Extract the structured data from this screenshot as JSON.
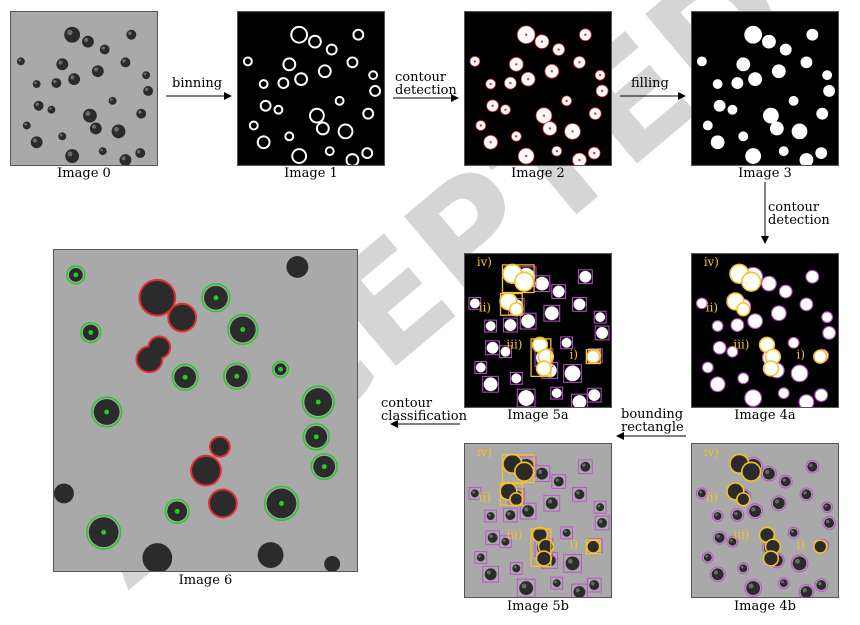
{
  "captions": {
    "img0": "Image 0",
    "img1": "Image 1",
    "img2": "Image 2",
    "img3": "Image 3",
    "img4a": "Image 4a",
    "img5a": "Image 5a",
    "img6": "Image 6",
    "img5b": "Image 5b",
    "img4b": "Image 4b"
  },
  "steps": {
    "binning": "binning",
    "contour_detection_1": [
      "contour",
      "detection"
    ],
    "filling": "filling",
    "contour_detection_2": [
      "contour",
      "detection"
    ],
    "bounding_rectangle": [
      "bounding",
      "rectangle"
    ],
    "contour_classification": [
      "contour",
      "classification"
    ]
  },
  "cluster_labels": {
    "i": "i)",
    "ii": "ii)",
    "iii": "iii)",
    "iv": "iv)"
  },
  "watermark": "ACCEPTED",
  "colors": {
    "gray_bg": "#a9a9a9",
    "bubble": "#2b2b2b",
    "magenta": "#c050d0",
    "yellow": "#f5c228",
    "green": "#22cc22",
    "red": "#e03030",
    "watermark": "#bdbdbd"
  }
}
